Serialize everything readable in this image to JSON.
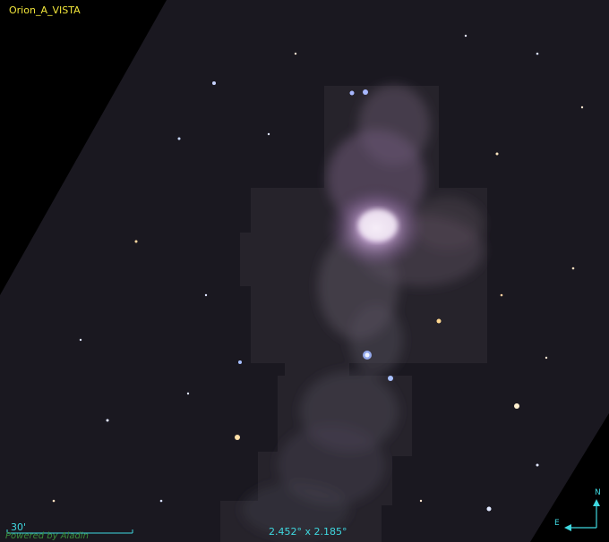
{
  "survey": {
    "name": "Orion_A_VISTA"
  },
  "field_of_view": {
    "text": "2.452° x 2.185°"
  },
  "scale": {
    "label": "30'"
  },
  "credit": {
    "text": "Powered by Aladin"
  },
  "compass": {
    "north": "N",
    "east": "E"
  },
  "colors": {
    "survey_label": "#f2e63a",
    "overlay": "#3fd8e0",
    "credit": "#3c8f3c"
  }
}
